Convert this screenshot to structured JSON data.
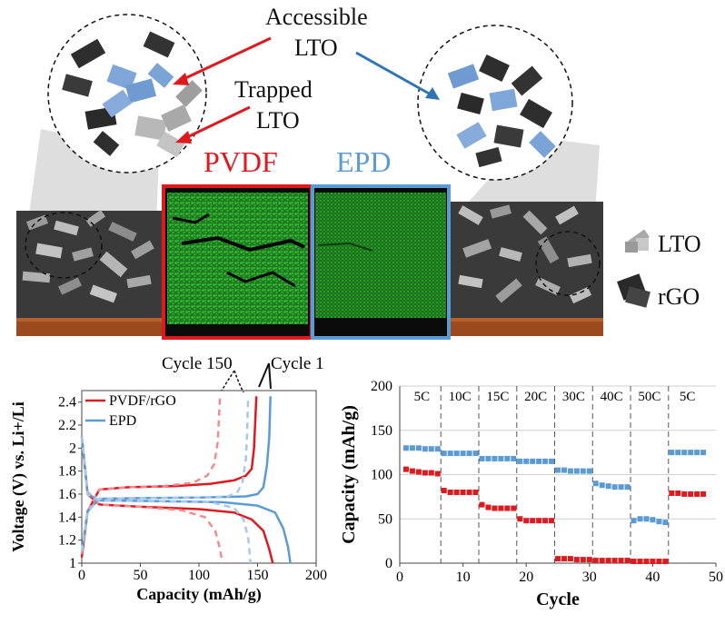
{
  "schematic": {
    "callout_accessible_line1": "Accessible",
    "callout_accessible_line2": "LTO",
    "callout_trapped_line1": "Trapped",
    "callout_trapped_line2": "LTO",
    "pvdf_label": "PVDF",
    "epd_label": "EPD",
    "legend_lto": "LTO",
    "legend_rgo": "rGO",
    "colors": {
      "pvdf": "#e0191f",
      "epd": "#5b9bd5",
      "particles_green": "#2fc02f",
      "substrate": "#9a4a1c"
    }
  },
  "chart_data": [
    {
      "type": "line",
      "title": "",
      "xlabel": "Capacity (mAh/g)",
      "ylabel": "Voltage (V) vs. Li+/Li",
      "xlim": [
        0,
        200
      ],
      "ylim": [
        1,
        2.5
      ],
      "xticks": [
        "0",
        "50",
        "100",
        "150",
        "200"
      ],
      "yticks": [
        "1",
        "1.2",
        "1.4",
        "1.6",
        "1.8",
        "2",
        "2.2",
        "2.4"
      ],
      "legend": [
        "PVDF/rGO",
        "EPD"
      ],
      "annotations": [
        "Cycle 150",
        "Cycle 1"
      ],
      "series": [
        {
          "name": "PVDF/rGO cycle 1 charge",
          "color": "#e0191f",
          "dashed": false,
          "points": [
            [
              0,
              1.05
            ],
            [
              5,
              1.45
            ],
            [
              15,
              1.64
            ],
            [
              40,
              1.66
            ],
            [
              80,
              1.67
            ],
            [
              110,
              1.69
            ],
            [
              130,
              1.72
            ],
            [
              140,
              1.76
            ],
            [
              145,
              1.82
            ],
            [
              147,
              2.0
            ],
            [
              149,
              2.45
            ]
          ]
        },
        {
          "name": "PVDF/rGO cycle 1 discharge",
          "color": "#e0191f",
          "dashed": false,
          "points": [
            [
              0,
              2.1
            ],
            [
              5,
              1.6
            ],
            [
              15,
              1.51
            ],
            [
              50,
              1.49
            ],
            [
              100,
              1.47
            ],
            [
              130,
              1.44
            ],
            [
              145,
              1.38
            ],
            [
              155,
              1.28
            ],
            [
              160,
              1.12
            ],
            [
              163,
              1.0
            ]
          ]
        },
        {
          "name": "PVDF/rGO cycle 150 charge",
          "color": "#f28b8e",
          "dashed": true,
          "points": [
            [
              0,
              1.08
            ],
            [
              5,
              1.45
            ],
            [
              15,
              1.64
            ],
            [
              40,
              1.66
            ],
            [
              70,
              1.67
            ],
            [
              95,
              1.7
            ],
            [
              107,
              1.76
            ],
            [
              113,
              1.86
            ],
            [
              116,
              2.05
            ],
            [
              118,
              2.45
            ]
          ]
        },
        {
          "name": "PVDF/rGO cycle 150 discharge",
          "color": "#f28b8e",
          "dashed": true,
          "points": [
            [
              0,
              2.1
            ],
            [
              5,
              1.62
            ],
            [
              15,
              1.51
            ],
            [
              50,
              1.49
            ],
            [
              85,
              1.46
            ],
            [
              105,
              1.4
            ],
            [
              114,
              1.28
            ],
            [
              118,
              1.12
            ],
            [
              120,
              1.0
            ]
          ]
        },
        {
          "name": "EPD cycle 1 charge",
          "color": "#5b9bd5",
          "dashed": false,
          "points": [
            [
              0,
              1.1
            ],
            [
              5,
              1.45
            ],
            [
              15,
              1.56
            ],
            [
              50,
              1.565
            ],
            [
              100,
              1.57
            ],
            [
              140,
              1.58
            ],
            [
              150,
              1.6
            ],
            [
              155,
              1.66
            ],
            [
              158,
              1.85
            ],
            [
              160,
              2.1
            ],
            [
              161,
              2.45
            ]
          ]
        },
        {
          "name": "EPD cycle 1 discharge",
          "color": "#5b9bd5",
          "dashed": false,
          "points": [
            [
              0,
              2.1
            ],
            [
              5,
              1.6
            ],
            [
              15,
              1.545
            ],
            [
              60,
              1.54
            ],
            [
              120,
              1.53
            ],
            [
              150,
              1.5
            ],
            [
              165,
              1.44
            ],
            [
              172,
              1.3
            ],
            [
              176,
              1.14
            ],
            [
              178,
              1.0
            ]
          ]
        },
        {
          "name": "EPD cycle 150 charge",
          "color": "#a9c8e8",
          "dashed": true,
          "points": [
            [
              0,
              1.1
            ],
            [
              5,
              1.45
            ],
            [
              15,
              1.56
            ],
            [
              50,
              1.565
            ],
            [
              100,
              1.57
            ],
            [
              125,
              1.58
            ],
            [
              133,
              1.62
            ],
            [
              137,
              1.7
            ],
            [
              140,
              1.9
            ],
            [
              141,
              2.1
            ],
            [
              142,
              2.45
            ]
          ]
        },
        {
          "name": "EPD cycle 150 discharge",
          "color": "#a9c8e8",
          "dashed": true,
          "points": [
            [
              0,
              2.1
            ],
            [
              5,
              1.6
            ],
            [
              15,
              1.545
            ],
            [
              60,
              1.54
            ],
            [
              110,
              1.53
            ],
            [
              130,
              1.48
            ],
            [
              138,
              1.38
            ],
            [
              142,
              1.22
            ],
            [
              144,
              1.0
            ]
          ]
        }
      ]
    },
    {
      "type": "scatter",
      "title": "",
      "xlabel": "Cycle",
      "ylabel": "Capacity (mAh/g)",
      "xlim": [
        0,
        50
      ],
      "ylim": [
        0,
        200
      ],
      "xticks": [
        "0",
        "10",
        "20",
        "30",
        "40",
        "50"
      ],
      "yticks": [
        "0",
        "50",
        "100",
        "150",
        "200"
      ],
      "rate_labels": [
        "5C",
        "10C",
        "15C",
        "20C",
        "30C",
        "40C",
        "50C",
        "5C"
      ],
      "segment_boundaries": [
        6.5,
        12.5,
        18.5,
        24.5,
        30.5,
        36.5,
        42.5
      ],
      "series": [
        {
          "name": "EPD",
          "color": "#5b9bd5",
          "x": [
            1,
            2,
            3,
            4,
            5,
            6,
            7,
            8,
            9,
            10,
            11,
            12,
            13,
            14,
            15,
            16,
            17,
            18,
            19,
            20,
            21,
            22,
            23,
            24,
            25,
            26,
            27,
            28,
            29,
            30,
            31,
            32,
            33,
            34,
            35,
            36,
            37,
            38,
            39,
            40,
            41,
            42,
            43,
            44,
            45,
            46,
            47,
            48
          ],
          "values": [
            130,
            130,
            130,
            129,
            129,
            129,
            124,
            124,
            124,
            124,
            124,
            124,
            118,
            118,
            118,
            118,
            118,
            118,
            115,
            115,
            115,
            115,
            115,
            115,
            105,
            105,
            104,
            104,
            104,
            104,
            90,
            88,
            87,
            86,
            86,
            86,
            48,
            50,
            50,
            49,
            47,
            46,
            125,
            125,
            125,
            125,
            125,
            125
          ]
        },
        {
          "name": "PVDF/rGO",
          "color": "#e0191f",
          "x": [
            1,
            2,
            3,
            4,
            5,
            6,
            7,
            8,
            9,
            10,
            11,
            12,
            13,
            14,
            15,
            16,
            17,
            18,
            19,
            20,
            21,
            22,
            23,
            24,
            25,
            26,
            27,
            28,
            29,
            30,
            31,
            32,
            33,
            34,
            35,
            36,
            37,
            38,
            39,
            40,
            41,
            42,
            43,
            44,
            45,
            46,
            47,
            48
          ],
          "values": [
            106,
            104,
            103,
            102,
            102,
            101,
            82,
            80,
            80,
            80,
            80,
            80,
            66,
            63,
            62,
            62,
            62,
            62,
            50,
            48,
            48,
            48,
            48,
            48,
            5,
            5,
            5,
            4,
            4,
            4,
            3,
            3,
            3,
            3,
            3,
            3,
            2,
            2,
            2,
            2,
            2,
            2,
            79,
            79,
            78,
            78,
            78,
            78
          ]
        }
      ]
    }
  ]
}
